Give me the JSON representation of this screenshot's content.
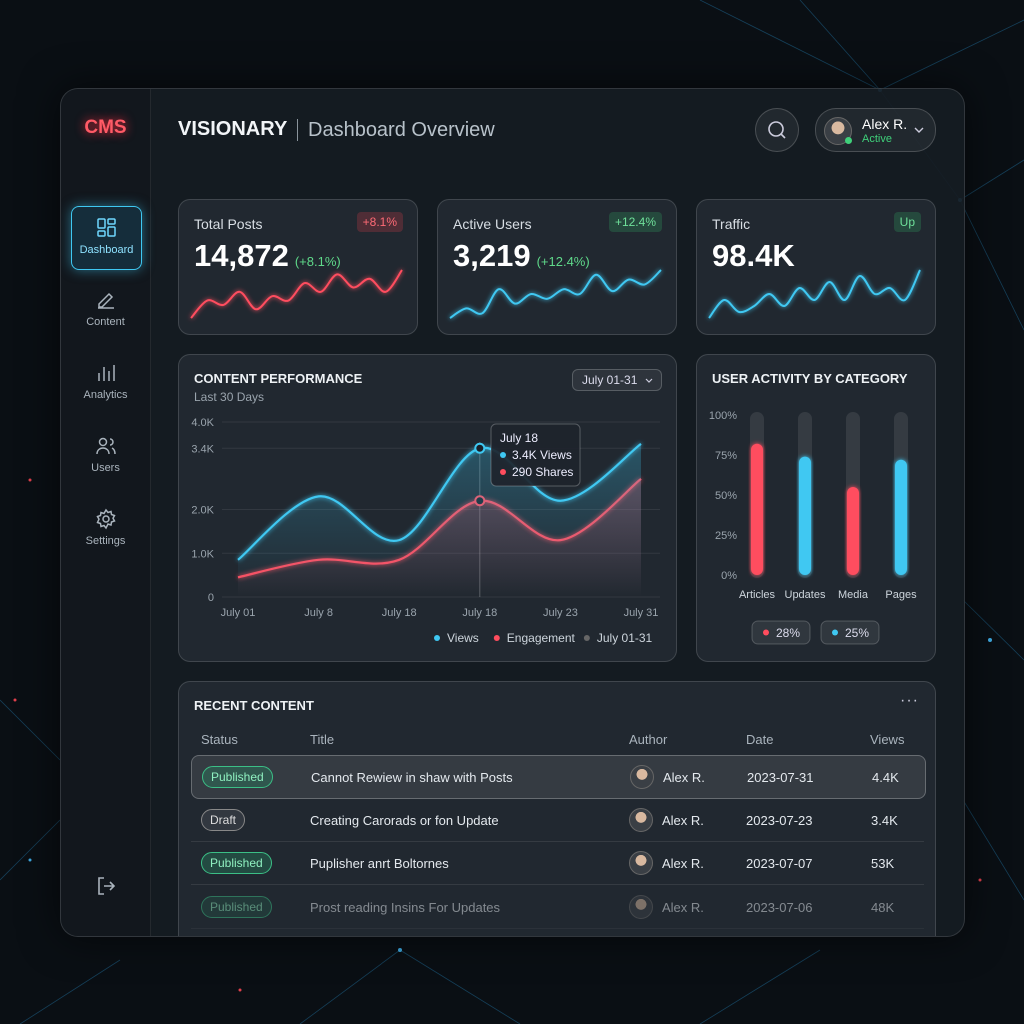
{
  "sidebar": {
    "logo": "CMS",
    "nav": [
      "Dashboard",
      "Content",
      "Analytics",
      "Users",
      "Settings"
    ]
  },
  "header": {
    "brand": "VISIONARY",
    "title": "Dashboard Overview",
    "user_name": "Alex R.",
    "user_status": "Active"
  },
  "stats": [
    {
      "label": "Total Posts",
      "badge": "+8.1%",
      "value": "14,872",
      "change": "(+8.1%)",
      "color": "#ff4d5e",
      "trend": [
        2,
        4,
        3.5,
        5,
        3,
        4.5,
        4,
        6,
        5,
        7,
        5.5,
        6.5,
        5,
        7.5
      ]
    },
    {
      "label": "Active Users",
      "badge": "+12.4%",
      "value": "3,219",
      "change": "(+12.4%)",
      "color": "#3fc8f2",
      "trend": [
        2,
        3,
        2.5,
        5,
        3.5,
        4.5,
        4,
        5,
        4.5,
        6.5,
        4.8,
        6,
        5.5,
        7
      ]
    },
    {
      "label": "Traffic",
      "badge": "Up",
      "value": "98.4K",
      "color": "#3fc8f2",
      "trend": [
        3,
        4.5,
        3.5,
        4,
        5,
        4,
        5.5,
        4.5,
        6,
        4.5,
        6.5,
        5,
        5.5,
        4.5,
        7
      ]
    }
  ],
  "chart_data": [
    {
      "type": "line",
      "title": "CONTENT PERFORMANCE",
      "subtitle": "Last 30 Days",
      "range_label": "July 01-31",
      "categories": [
        "July 01",
        "July 8",
        "July 18",
        "July 18",
        "July 23",
        "July 31"
      ],
      "series": [
        {
          "name": "Views",
          "color": "#3fc8f2",
          "values": [
            850,
            2300,
            1300,
            3400,
            2200,
            3500
          ]
        },
        {
          "name": "Engagement",
          "color": "#ff4d5e",
          "values": [
            450,
            850,
            850,
            2200,
            1300,
            2700
          ]
        }
      ],
      "ylim": [
        0,
        4000
      ],
      "yticks": [
        0,
        {
          "value": 1000,
          "label": "1.0K"
        },
        {
          "value": 2000,
          "label": "2.0K"
        },
        {
          "value": 3400,
          "label": "3.4K"
        },
        {
          "value": 4000,
          "label": "4.0K"
        }
      ],
      "grid": true,
      "tooltip": {
        "title": "July 18",
        "lines": [
          "3.4K Views",
          "290 Shares"
        ]
      }
    },
    {
      "type": "bar",
      "title": "USER ACTIVITY BY CATEGORY",
      "categories": [
        "Articles",
        "Updates",
        "Media",
        "Pages"
      ],
      "values": [
        82,
        74,
        55,
        72
      ],
      "colors": [
        "#ff4d5e",
        "#3fc8f2",
        "#ff4d5e",
        "#3fc8f2"
      ],
      "ylim": [
        0,
        100
      ],
      "yticks": [
        {
          "value": 0,
          "label": "0%"
        },
        {
          "value": 25,
          "label": "25%"
        },
        {
          "value": 50,
          "label": "50%"
        },
        {
          "value": 75,
          "label": "75%"
        },
        {
          "value": 100,
          "label": "100%"
        }
      ],
      "badges": [
        {
          "text": "28%",
          "color": "#ff4d5e"
        },
        {
          "text": "25%",
          "color": "#3fc8f2"
        }
      ]
    }
  ],
  "recent": {
    "title": "RECENT CONTENT",
    "columns": [
      "Status",
      "Title",
      "Author",
      "Date",
      "Views"
    ],
    "rows": [
      [
        "Published",
        "Cannot Rewiew in shaw with Posts",
        "Alex R.",
        "2023-07-31",
        "4.4K"
      ],
      [
        "Draft",
        "Creating Carorads or fon Update",
        "Alex R.",
        "2023-07-23",
        "3.4K"
      ],
      [
        "Published",
        "Puplisher anrt Boltornes",
        "Alex R.",
        "2023-07-07",
        "53K"
      ],
      [
        "Published",
        "Prost reading Insins For Updates",
        "Alex R.",
        "2023-07-06",
        "48K"
      ]
    ]
  }
}
